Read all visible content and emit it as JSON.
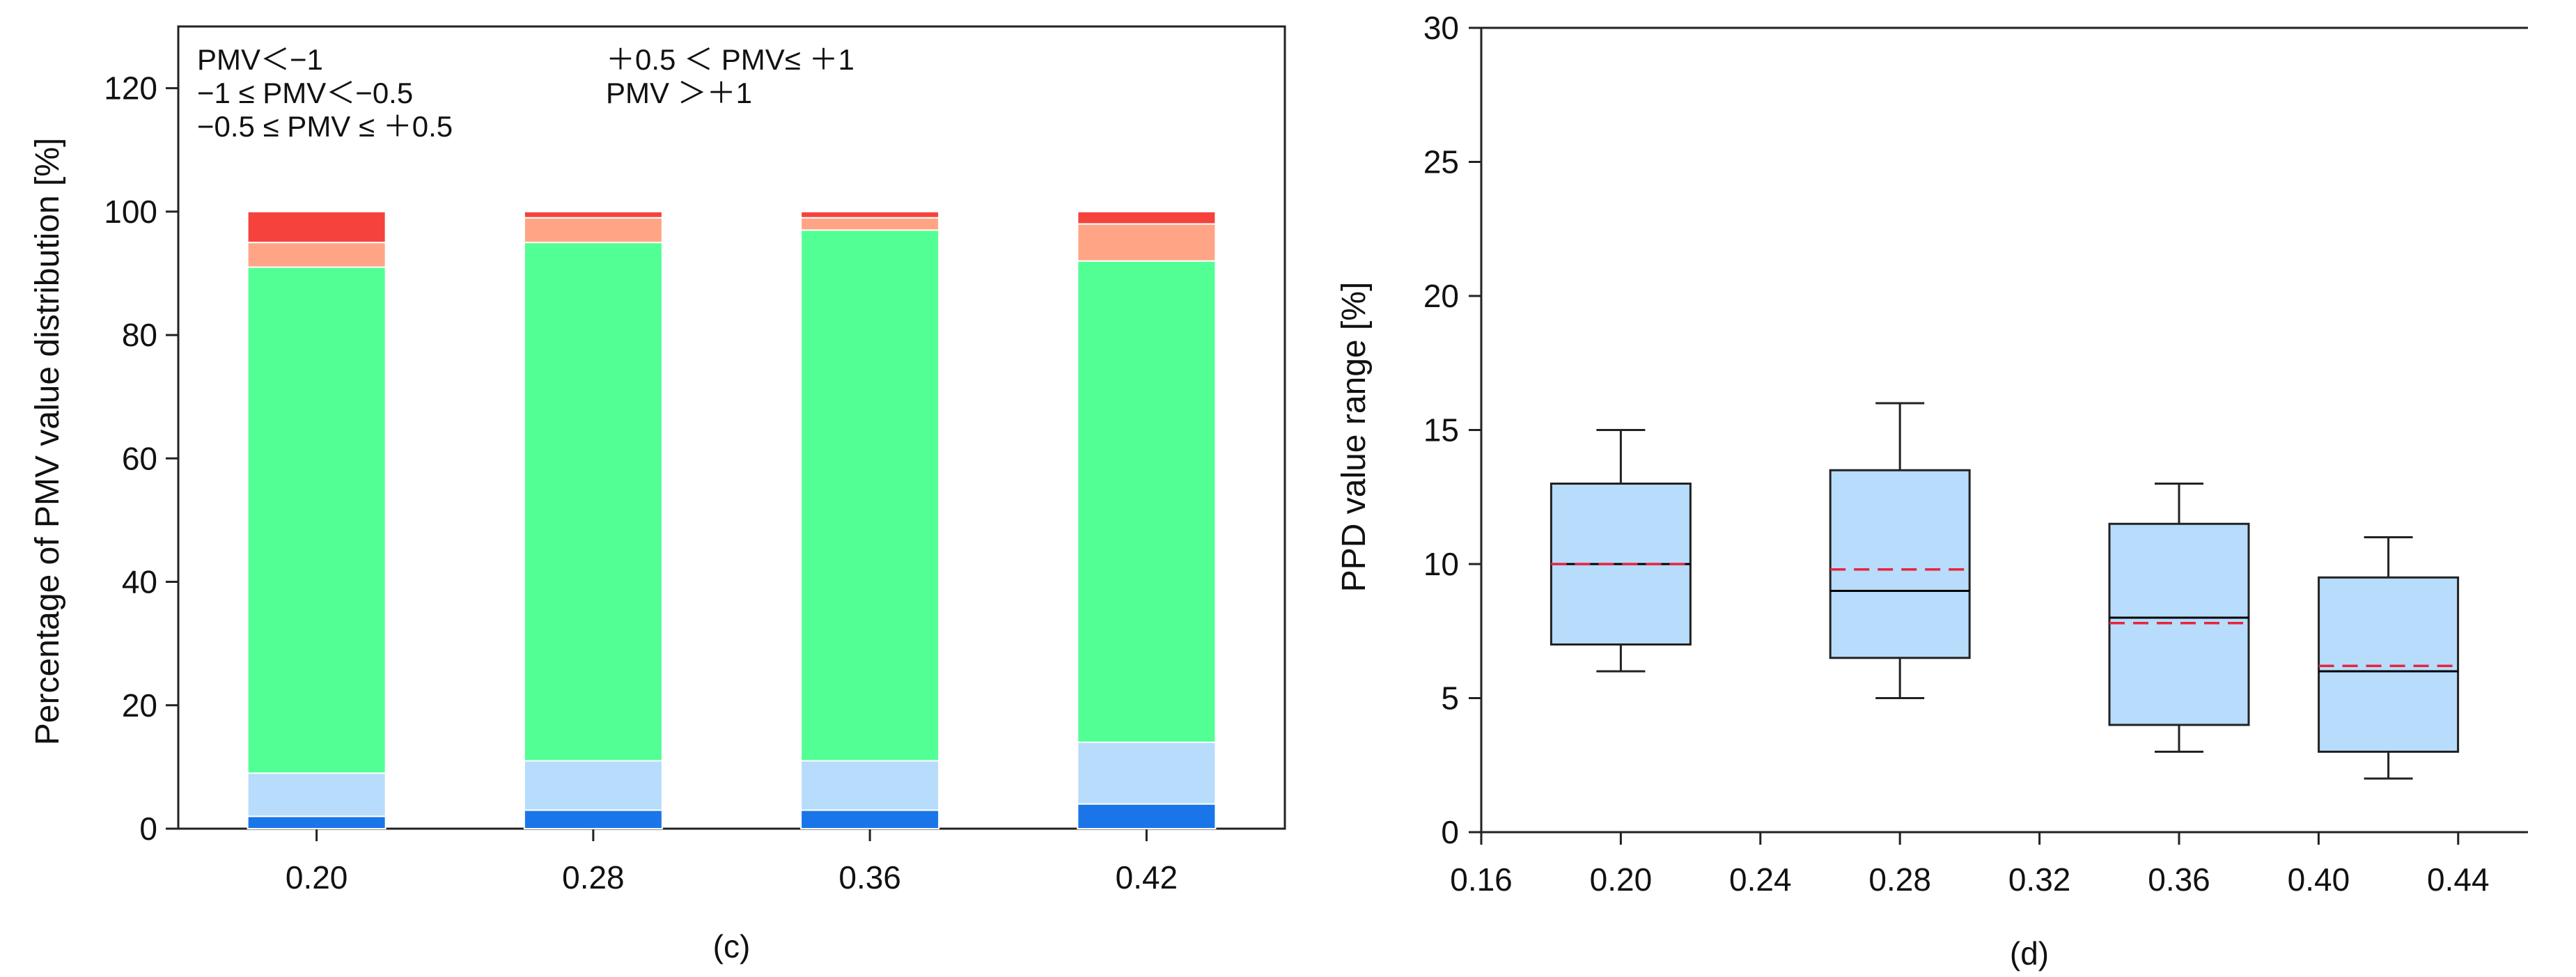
{
  "chart_data": [
    {
      "type": "bar",
      "stacked": true,
      "panel_label": "(c)",
      "categories": [
        "0.20",
        "0.28",
        "0.36",
        "0.42"
      ],
      "ylabel": "Percentage of PMV value distribution [%]",
      "xlabel": "",
      "ylim": [
        0,
        130
      ],
      "yticks": [
        0,
        20,
        40,
        60,
        80,
        100,
        120
      ],
      "legend_position": "top-left",
      "series": [
        {
          "name": "PMV＜−1",
          "color": "#1a75e8",
          "values": [
            2,
            3,
            3,
            4
          ]
        },
        {
          "name": "−1 ≤ PMV＜−0.5",
          "color": "#b7dcfc",
          "values": [
            7,
            8,
            8,
            10
          ]
        },
        {
          "name": "−0.5 ≤ PMV ≤ ＋0.5",
          "color": "#52ff94",
          "values": [
            82,
            84,
            86,
            78
          ]
        },
        {
          "name": "＋0.5 ＜ PMV≤ ＋1",
          "color": "#ffa585",
          "values": [
            4,
            4,
            2,
            6
          ]
        },
        {
          "name": "PMV ＞＋1",
          "color": "#f5423c",
          "values": [
            5,
            1,
            1,
            2
          ]
        }
      ]
    },
    {
      "type": "box",
      "panel_label": "(d)",
      "ylabel": "PPD value range [%]",
      "xlabel": "",
      "xlim": [
        0.16,
        0.46
      ],
      "ylim": [
        0,
        30
      ],
      "xticks": [
        "0.16",
        "0.20",
        "0.24",
        "0.28",
        "0.32",
        "0.36",
        "0.40",
        "0.44"
      ],
      "yticks": [
        "0",
        "5",
        "10",
        "15",
        "20",
        "25",
        "30"
      ],
      "box_color": "#b7dcfc",
      "median_color": "#000000",
      "mean_color": "#e8243c",
      "boxes": [
        {
          "x": 0.2,
          "whisker_low": 6,
          "q1": 7,
          "median": 10,
          "mean": 10,
          "q3": 13,
          "whisker_high": 15
        },
        {
          "x": 0.28,
          "whisker_low": 5,
          "q1": 6.5,
          "median": 9,
          "mean": 9.8,
          "q3": 13.5,
          "whisker_high": 16
        },
        {
          "x": 0.36,
          "whisker_low": 3,
          "q1": 4,
          "median": 8,
          "mean": 7.8,
          "q3": 11.5,
          "whisker_high": 13
        },
        {
          "x": 0.42,
          "whisker_low": 2,
          "q1": 3,
          "median": 6,
          "mean": 6.2,
          "q3": 9.5,
          "whisker_high": 11
        }
      ]
    }
  ]
}
